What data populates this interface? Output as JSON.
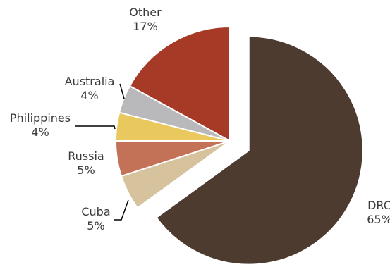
{
  "chart_data": {
    "type": "pie",
    "title": "",
    "slices": [
      {
        "name": "DRC",
        "value_label": "65%",
        "value": 65,
        "color": "#4e3b30",
        "exploded": true
      },
      {
        "name": "Cuba",
        "value_label": "5%",
        "value": 5,
        "color": "#d6c39e"
      },
      {
        "name": "Russia",
        "value_label": "5%",
        "value": 5,
        "color": "#c37257"
      },
      {
        "name": "Philippines",
        "value_label": "4%",
        "value": 4,
        "color": "#e9c85e"
      },
      {
        "name": "Australia",
        "value_label": "4%",
        "value": 4,
        "color": "#b9b9bb"
      },
      {
        "name": "Other",
        "value_label": "17%",
        "value": 17,
        "color": "#a63a27"
      }
    ]
  }
}
